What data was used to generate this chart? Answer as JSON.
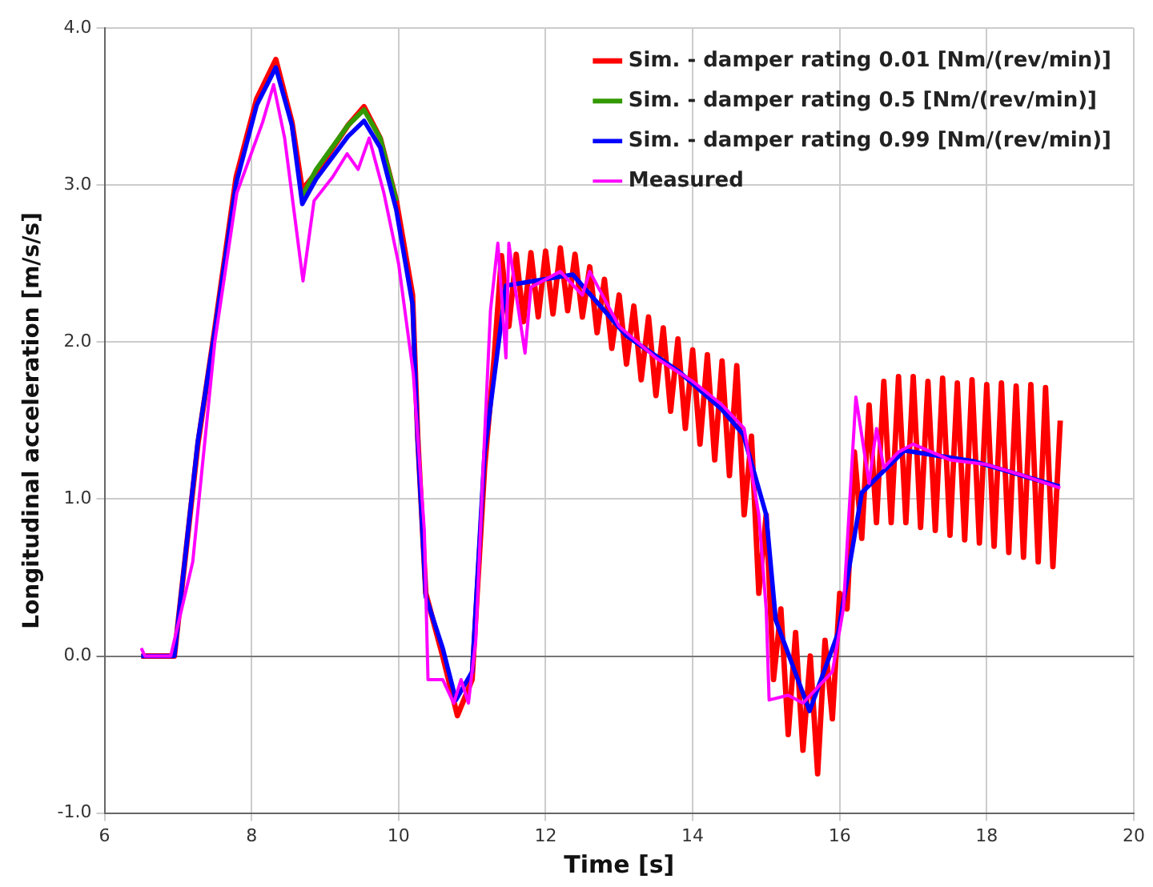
{
  "chart_data": {
    "type": "line",
    "xlabel": "Time [s]",
    "ylabel": "Longitudinal acceleration [m/s/s]",
    "xlim": [
      6,
      20
    ],
    "xticks": [
      6,
      8,
      10,
      12,
      14,
      16,
      18,
      20
    ],
    "ylim": [
      -1,
      4
    ],
    "yticks": [
      {
        "value": 4,
        "label": "4.0"
      },
      {
        "value": 3,
        "label": "3.0"
      },
      {
        "value": 2,
        "label": "2.0"
      },
      {
        "value": 1,
        "label": "1.0"
      },
      {
        "value": 0,
        "label": "0.0"
      },
      {
        "value": -1,
        "label": "-1.0"
      }
    ],
    "grid": true,
    "legend": "top right",
    "marker": "none",
    "line_style": "solid",
    "series": [
      {
        "name": "Sim. - damper rating 0.01 [Nm/(rev/min)]",
        "color": "#ff0000",
        "x": [
          6.5,
          6.95,
          7.27,
          7.49,
          7.79,
          8.07,
          8.33,
          8.55,
          8.69,
          8.88,
          9.31,
          9.53,
          9.75,
          9.97,
          10.19,
          10.26,
          10.37,
          10.6,
          10.8,
          11.0,
          11.17,
          11.3,
          11.4,
          11.5,
          11.6,
          11.7,
          11.8,
          11.9,
          12.0,
          12.1,
          12.2,
          12.3,
          12.4,
          12.5,
          12.6,
          12.7,
          12.8,
          12.9,
          13.0,
          13.1,
          13.2,
          13.3,
          13.4,
          13.5,
          13.6,
          13.7,
          13.8,
          13.9,
          14.0,
          14.1,
          14.2,
          14.3,
          14.4,
          14.5,
          14.6,
          14.7,
          14.8,
          14.9,
          15.0,
          15.1,
          15.2,
          15.3,
          15.4,
          15.5,
          15.6,
          15.7,
          15.8,
          15.9,
          16.0,
          16.1,
          16.2,
          16.3,
          16.4,
          16.5,
          16.6,
          16.7,
          16.8,
          16.9,
          17.0,
          17.1,
          17.2,
          17.3,
          17.4,
          17.5,
          17.6,
          17.7,
          17.8,
          17.9,
          18.0,
          18.1,
          18.2,
          18.3,
          18.4,
          18.5,
          18.6,
          18.7,
          18.8,
          18.9,
          19.0
        ],
        "values": [
          0,
          0,
          1.35,
          2.05,
          3.05,
          3.55,
          3.8,
          3.4,
          2.97,
          3.08,
          3.38,
          3.5,
          3.3,
          2.9,
          2.3,
          1.4,
          0.4,
          0.0,
          -0.38,
          -0.15,
          1.2,
          1.9,
          2.55,
          2.1,
          2.56,
          2.13,
          2.57,
          2.16,
          2.58,
          2.18,
          2.6,
          2.2,
          2.56,
          2.16,
          2.48,
          2.06,
          2.4,
          1.96,
          2.3,
          1.86,
          2.23,
          1.76,
          2.16,
          1.66,
          2.09,
          1.56,
          2.02,
          1.45,
          1.95,
          1.35,
          1.92,
          1.25,
          1.88,
          1.15,
          1.85,
          0.9,
          1.4,
          0.4,
          0.9,
          -0.15,
          0.3,
          -0.5,
          0.15,
          -0.6,
          0.0,
          -0.75,
          0.1,
          -0.4,
          0.4,
          0.3,
          1.3,
          0.75,
          1.6,
          0.85,
          1.75,
          0.85,
          1.78,
          0.85,
          1.78,
          0.82,
          1.75,
          0.8,
          1.77,
          0.77,
          1.74,
          0.74,
          1.76,
          0.72,
          1.73,
          0.7,
          1.74,
          0.66,
          1.72,
          0.63,
          1.73,
          0.6,
          1.71,
          0.57,
          1.5
        ]
      },
      {
        "name": "Sim. - damper rating 0.5 [Nm/(rev/min)]",
        "color": "#339900",
        "x": [
          8.69,
          8.88,
          9.31,
          9.53,
          9.75,
          9.97
        ],
        "values": [
          2.93,
          3.1,
          3.38,
          3.48,
          3.3,
          2.9
        ]
      },
      {
        "name": "Sim. - damper rating 0.99 [Nm/(rev/min)]",
        "color": "#0000ff",
        "x": [
          6.5,
          6.95,
          7.27,
          7.49,
          7.79,
          8.07,
          8.33,
          8.55,
          8.69,
          8.88,
          9.31,
          9.53,
          9.75,
          9.97,
          10.19,
          10.26,
          10.37,
          10.6,
          10.78,
          11.0,
          11.17,
          11.46,
          12.37,
          13.1,
          13.82,
          14.4,
          14.69,
          15.0,
          15.13,
          15.59,
          15.98,
          16.3,
          16.88,
          17.83,
          18.99
        ],
        "values": [
          0,
          0,
          1.37,
          2.04,
          3.01,
          3.51,
          3.75,
          3.38,
          2.88,
          3.04,
          3.31,
          3.41,
          3.24,
          2.84,
          2.24,
          1.37,
          0.38,
          0.05,
          -0.28,
          -0.1,
          1.3,
          2.36,
          2.43,
          2.04,
          1.81,
          1.57,
          1.41,
          0.9,
          0.23,
          -0.35,
          0.15,
          1.04,
          1.31,
          1.24,
          1.08
        ]
      },
      {
        "name": "Measured",
        "color": "#ff00ff",
        "x": [
          6.5,
          6.55,
          6.9,
          7.2,
          7.5,
          7.8,
          8.15,
          8.3,
          8.45,
          8.7,
          8.85,
          9.1,
          9.3,
          9.45,
          9.6,
          9.8,
          10.0,
          10.2,
          10.35,
          10.4,
          10.6,
          10.75,
          10.85,
          10.95,
          11.05,
          11.15,
          11.25,
          11.35,
          11.46,
          11.5,
          11.6,
          11.72,
          11.8,
          12.2,
          12.5,
          12.6,
          13.0,
          13.5,
          14.0,
          14.4,
          14.7,
          14.9,
          15.0,
          15.04,
          15.3,
          15.5,
          15.7,
          15.9,
          16.05,
          16.22,
          16.4,
          16.5,
          16.6,
          16.8,
          17.0,
          17.5,
          18.0,
          18.5,
          19.0
        ],
        "values": [
          0.05,
          0,
          0,
          0.6,
          2.0,
          2.95,
          3.4,
          3.64,
          3.3,
          2.39,
          2.9,
          3.05,
          3.2,
          3.1,
          3.3,
          2.95,
          2.5,
          1.8,
          0.8,
          -0.15,
          -0.15,
          -0.3,
          -0.15,
          -0.3,
          0.1,
          1.2,
          2.2,
          2.63,
          1.9,
          2.63,
          2.3,
          1.93,
          2.35,
          2.45,
          2.3,
          2.45,
          2.1,
          1.9,
          1.75,
          1.6,
          1.45,
          0.9,
          0.3,
          -0.28,
          -0.25,
          -0.3,
          -0.2,
          -0.1,
          0.3,
          1.65,
          1.1,
          1.45,
          1.2,
          1.3,
          1.35,
          1.25,
          1.22,
          1.15,
          1.07
        ]
      }
    ]
  }
}
